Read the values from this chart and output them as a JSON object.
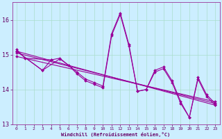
{
  "xlabel": "Windchill (Refroidissement éolien,°C)",
  "background_color": "#cceeff",
  "grid_color": "#aaddcc",
  "line_color": "#990099",
  "xlim": [
    -0.5,
    23.5
  ],
  "ylim": [
    13.0,
    16.5
  ],
  "yticks": [
    13,
    14,
    15,
    16
  ],
  "xticks": [
    0,
    1,
    2,
    3,
    4,
    5,
    6,
    7,
    8,
    9,
    10,
    11,
    12,
    13,
    14,
    15,
    16,
    17,
    18,
    19,
    20,
    21,
    22,
    23
  ],
  "series": [
    {
      "x": [
        0,
        1,
        4
      ],
      "y": [
        15.15,
        14.9,
        14.85
      ]
    },
    {
      "x": [
        0,
        3,
        4,
        5,
        6,
        7,
        8,
        9,
        10,
        11,
        12,
        13,
        14,
        15,
        16,
        17,
        18,
        19,
        20,
        21,
        22,
        23
      ],
      "y": [
        15.1,
        14.55,
        14.85,
        14.9,
        14.7,
        14.5,
        14.3,
        14.2,
        14.1,
        15.6,
        16.2,
        15.3,
        13.95,
        14.0,
        14.55,
        14.65,
        14.25,
        13.65,
        13.2,
        14.35,
        13.85,
        13.6
      ]
    },
    {
      "x": [
        0,
        3,
        5,
        6,
        7,
        8,
        9,
        10,
        11,
        12,
        13,
        14,
        15,
        16,
        17,
        18,
        19,
        20,
        21,
        22,
        23
      ],
      "y": [
        15.1,
        14.55,
        14.88,
        14.7,
        14.45,
        14.25,
        14.15,
        14.05,
        15.55,
        16.15,
        15.25,
        13.95,
        14.0,
        14.5,
        14.6,
        14.2,
        13.6,
        13.2,
        14.3,
        13.8,
        13.55
      ]
    },
    {
      "x": [
        0,
        23
      ],
      "y": [
        15.1,
        13.55
      ]
    },
    {
      "x": [
        0,
        23
      ],
      "y": [
        15.05,
        13.6
      ]
    },
    {
      "x": [
        0,
        23
      ],
      "y": [
        14.95,
        13.65
      ]
    }
  ],
  "xlabel_fontsize": 5.0,
  "xtick_fontsize": 4.5,
  "ytick_fontsize": 6.0,
  "line_width": 0.8,
  "marker_size": 2.0
}
